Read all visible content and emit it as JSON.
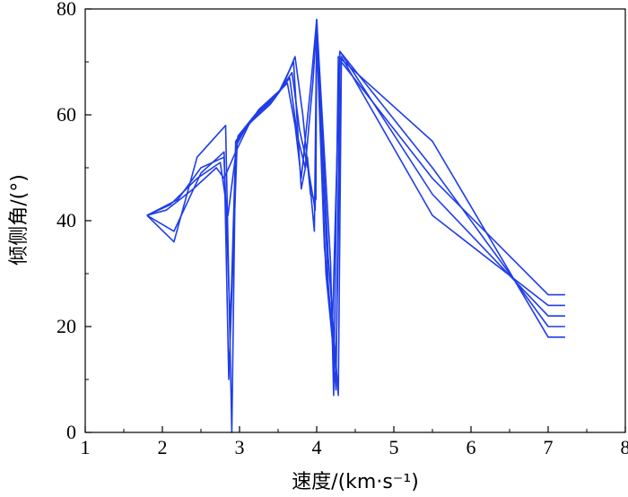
{
  "chart_data": {
    "type": "line",
    "title": "",
    "xlabel": "速度/(km·s⁻¹)",
    "ylabel": "倾侧角/(°)",
    "xlim": [
      1,
      8
    ],
    "ylim": [
      0,
      80
    ],
    "xticks": [
      1,
      2,
      3,
      4,
      5,
      6,
      7,
      8
    ],
    "yticks": [
      0,
      20,
      40,
      60,
      80
    ],
    "grid": false,
    "legend": "none",
    "line_color": "#1f3de8",
    "series": [
      {
        "x": [
          1.8,
          2.15,
          2.45,
          2.82,
          2.9,
          2.95,
          3.05,
          3.35,
          3.62,
          3.72,
          3.8,
          3.92,
          4.0,
          4.18,
          4.22,
          4.28,
          5.5,
          7.0,
          7.22
        ],
        "y": [
          41,
          36,
          52,
          58,
          0,
          55,
          57,
          62,
          66,
          58,
          48,
          65,
          78,
          32,
          7,
          71,
          55,
          18,
          18
        ]
      },
      {
        "x": [
          1.8,
          2.2,
          2.5,
          2.8,
          2.88,
          2.95,
          3.1,
          3.4,
          3.65,
          3.75,
          3.85,
          3.95,
          4.0,
          4.15,
          4.25,
          4.3,
          5.5,
          7.0,
          7.22
        ],
        "y": [
          41,
          44,
          50,
          52,
          20,
          54,
          58,
          62,
          67,
          56,
          50,
          66,
          77,
          28,
          8,
          72,
          50,
          20,
          20
        ]
      },
      {
        "x": [
          1.8,
          2.1,
          2.45,
          2.75,
          2.85,
          2.98,
          3.2,
          3.5,
          3.7,
          3.8,
          3.88,
          3.97,
          4.0,
          4.12,
          4.2,
          4.3,
          5.5,
          7.0,
          7.22
        ],
        "y": [
          41,
          43,
          48,
          51,
          41,
          56,
          60,
          64,
          70,
          46,
          52,
          38,
          76,
          30,
          18,
          72,
          45,
          22,
          22
        ]
      },
      {
        "x": [
          1.8,
          2.05,
          2.4,
          2.7,
          2.8,
          2.95,
          3.15,
          3.45,
          3.68,
          3.78,
          3.9,
          3.98,
          4.0,
          4.1,
          4.25,
          4.32,
          5.5,
          7.0,
          7.22
        ],
        "y": [
          41,
          42,
          46,
          50,
          48,
          53,
          59,
          63,
          68,
          57,
          49,
          42,
          75,
          35,
          12,
          71,
          41,
          24,
          24
        ]
      },
      {
        "x": [
          1.8,
          2.15,
          2.5,
          2.8,
          2.86,
          2.97,
          3.25,
          3.55,
          3.72,
          3.82,
          3.92,
          3.99,
          4.0,
          4.15,
          4.28,
          4.32,
          5.5,
          7.0,
          7.22
        ],
        "y": [
          41,
          38,
          49,
          53,
          10,
          55,
          61,
          65,
          71,
          60,
          45,
          44,
          78,
          33,
          7,
          70,
          48,
          26,
          26
        ]
      }
    ]
  }
}
